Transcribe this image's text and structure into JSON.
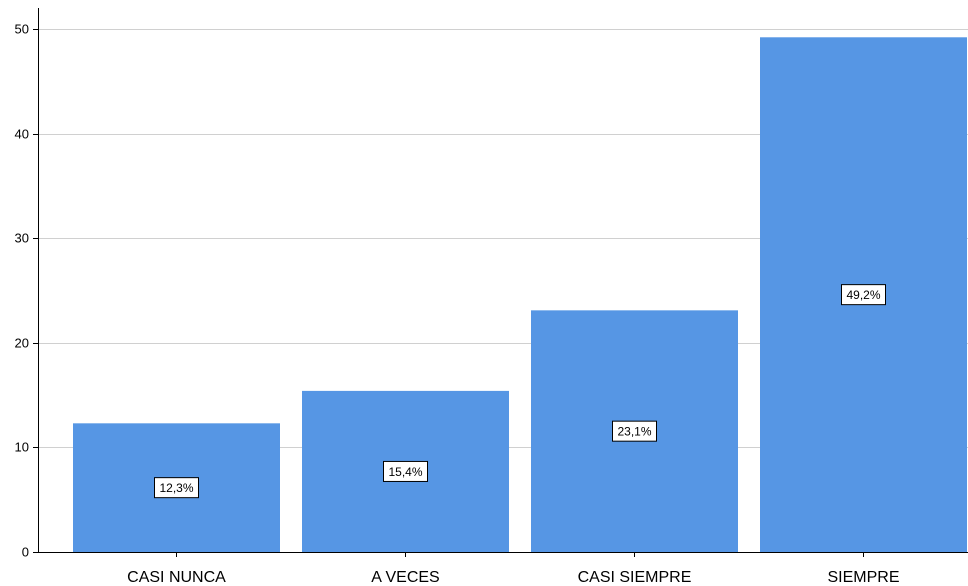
{
  "chart_data": {
    "type": "bar",
    "title": "",
    "xlabel": "",
    "ylabel": "",
    "categories": [
      "CASI NUNCA",
      "A VECES",
      "CASI SIEMPRE",
      "SIEMPRE"
    ],
    "values": [
      12.3,
      15.4,
      23.1,
      49.2
    ],
    "data_labels": [
      "12,3%",
      "15,4%",
      "23,1%",
      "49,2%"
    ],
    "ylim": [
      0,
      52
    ],
    "yticks": [
      0,
      10,
      20,
      30,
      40,
      50
    ],
    "grid": true,
    "legend": "none",
    "bar_color": "#5696e4",
    "grid_color": "#d0d0d0"
  }
}
